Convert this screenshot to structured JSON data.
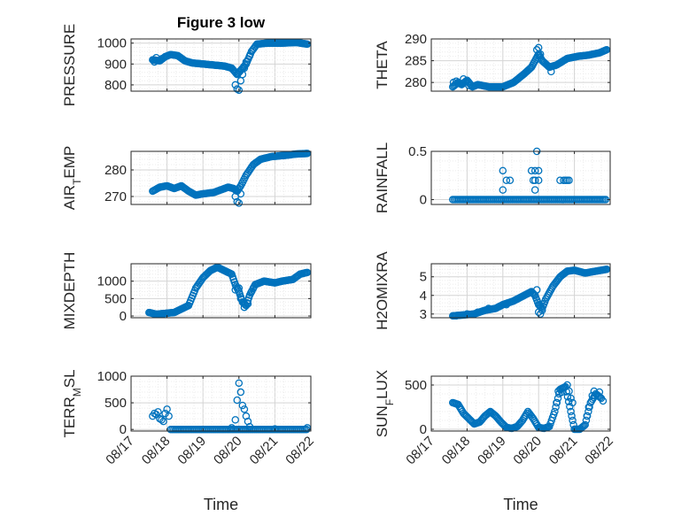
{
  "figure": {
    "title": "Figure 3 low",
    "marker_color": "#0072bd"
  },
  "chart_data": [
    {
      "id": "pressure",
      "type": "scatter",
      "title": "Figure 3 low",
      "xlabel": "",
      "ylabel": "PRESSURE",
      "xlim": [
        0,
        5
      ],
      "ylim": [
        770,
        1020
      ],
      "yticks": [
        800,
        900,
        1000
      ],
      "ytick_labels": [
        "800",
        "900",
        "1000"
      ],
      "xticks": [
        0,
        1,
        2,
        3,
        4,
        5
      ],
      "xtick_labels": [
        "08/17",
        "08/18",
        "08/19",
        "08/20",
        "08/21",
        "08/22"
      ],
      "show_xtick_labels": false,
      "grid": true,
      "curve": [
        [
          0.6,
          920
        ],
        [
          0.8,
          915
        ],
        [
          0.95,
          935
        ],
        [
          1.1,
          945
        ],
        [
          1.3,
          940
        ],
        [
          1.5,
          915
        ],
        [
          1.7,
          905
        ],
        [
          2,
          900
        ],
        [
          2.3,
          895
        ],
        [
          2.6,
          890
        ],
        [
          2.8,
          880
        ],
        [
          2.95,
          850
        ],
        [
          3.05,
          870
        ],
        [
          3.2,
          900
        ],
        [
          3.35,
          960
        ],
        [
          3.5,
          995
        ],
        [
          3.8,
          1000
        ],
        [
          4.2,
          1000
        ],
        [
          4.6,
          1003
        ],
        [
          4.9,
          995
        ]
      ],
      "extra_points": [
        [
          0.7,
          930
        ],
        [
          0.85,
          925
        ],
        [
          0.65,
          910
        ],
        [
          2.9,
          800
        ],
        [
          2.95,
          780
        ],
        [
          3.0,
          775
        ],
        [
          3.05,
          820
        ],
        [
          3.1,
          850
        ],
        [
          3.15,
          880
        ],
        [
          3.2,
          910
        ],
        [
          3.3,
          940
        ]
      ]
    },
    {
      "id": "theta",
      "type": "scatter",
      "xlabel": "",
      "ylabel": "THETA",
      "xlim": [
        0,
        5
      ],
      "ylim": [
        278,
        290
      ],
      "yticks": [
        280,
        285,
        290
      ],
      "ytick_labels": [
        "280",
        "285",
        "290"
      ],
      "xticks": [
        0,
        1,
        2,
        3,
        4,
        5
      ],
      "xtick_labels": [
        "08/17",
        "08/18",
        "08/19",
        "08/20",
        "08/21",
        "08/22"
      ],
      "show_xtick_labels": false,
      "grid": true,
      "curve": [
        [
          0.6,
          279
        ],
        [
          0.75,
          280
        ],
        [
          0.85,
          279.5
        ],
        [
          1.0,
          280.5
        ],
        [
          1.15,
          279
        ],
        [
          1.3,
          279.5
        ],
        [
          1.6,
          279
        ],
        [
          2.0,
          279
        ],
        [
          2.3,
          280
        ],
        [
          2.6,
          282
        ],
        [
          2.8,
          283.5
        ],
        [
          2.9,
          285
        ],
        [
          3.0,
          286.5
        ],
        [
          3.1,
          285
        ],
        [
          3.3,
          283.5
        ],
        [
          3.5,
          284
        ],
        [
          3.8,
          285.5
        ],
        [
          4.1,
          286
        ],
        [
          4.4,
          286.3
        ],
        [
          4.7,
          286.8
        ],
        [
          4.9,
          287.5
        ]
      ],
      "extra_points": [
        [
          0.62,
          280
        ],
        [
          0.7,
          280.3
        ],
        [
          0.9,
          280.8
        ],
        [
          1.05,
          279.3
        ],
        [
          2.95,
          287.5
        ],
        [
          3.0,
          288
        ],
        [
          3.05,
          286.5
        ],
        [
          3.35,
          282.5
        ]
      ]
    },
    {
      "id": "airtemp",
      "type": "scatter",
      "xlabel": "",
      "ylabel": "AIR_TEMP",
      "ylabel_main": "AIR",
      "ylabel_sub": "T",
      "ylabel_rest": "EMP",
      "xlim": [
        0,
        5
      ],
      "ylim": [
        267,
        287
      ],
      "yticks": [
        270,
        280
      ],
      "ytick_labels": [
        "270",
        "280"
      ],
      "xticks": [
        0,
        1,
        2,
        3,
        4,
        5
      ],
      "xtick_labels": [
        "08/17",
        "08/18",
        "08/19",
        "08/20",
        "08/21",
        "08/22"
      ],
      "show_xtick_labels": false,
      "grid": true,
      "curve": [
        [
          0.6,
          272
        ],
        [
          0.8,
          273.5
        ],
        [
          1.0,
          274
        ],
        [
          1.2,
          273
        ],
        [
          1.4,
          274
        ],
        [
          1.6,
          272
        ],
        [
          1.8,
          270.5
        ],
        [
          2.0,
          271
        ],
        [
          2.3,
          271.5
        ],
        [
          2.5,
          272.5
        ],
        [
          2.7,
          273.5
        ],
        [
          2.85,
          273
        ],
        [
          2.95,
          272
        ],
        [
          3.05,
          274
        ],
        [
          3.2,
          278
        ],
        [
          3.4,
          282
        ],
        [
          3.6,
          284
        ],
        [
          3.9,
          285
        ],
        [
          4.3,
          285.5
        ],
        [
          4.6,
          286
        ],
        [
          4.9,
          286.2
        ]
      ],
      "extra_points": [
        [
          2.95,
          268
        ],
        [
          3.0,
          267.5
        ],
        [
          2.9,
          270
        ],
        [
          3.05,
          271
        ]
      ]
    },
    {
      "id": "rainfall",
      "type": "scatter",
      "xlabel": "",
      "ylabel": "RAINFALL",
      "xlim": [
        0,
        5
      ],
      "ylim": [
        -0.05,
        0.5
      ],
      "yticks": [
        0,
        0.5
      ],
      "ytick_labels": [
        "0",
        "0.5"
      ],
      "xticks": [
        0,
        1,
        2,
        3,
        4,
        5
      ],
      "xtick_labels": [
        "08/17",
        "08/18",
        "08/19",
        "08/20",
        "08/21",
        "08/22"
      ],
      "show_xtick_labels": false,
      "grid": true,
      "baseline": {
        "x_from": 0.6,
        "x_to": 4.9,
        "y": 0,
        "step": 0.045
      },
      "extra_points": [
        [
          2.0,
          0.3
        ],
        [
          2.0,
          0.1
        ],
        [
          2.1,
          0.2
        ],
        [
          2.2,
          0.2
        ],
        [
          2.8,
          0.3
        ],
        [
          2.85,
          0.2
        ],
        [
          2.9,
          0.3
        ],
        [
          2.9,
          0.1
        ],
        [
          2.95,
          0.5
        ],
        [
          3.0,
          0.3
        ],
        [
          3.0,
          0.2
        ],
        [
          2.9,
          0.2
        ],
        [
          3.6,
          0.2
        ],
        [
          3.7,
          0.2
        ],
        [
          3.75,
          0.2
        ],
        [
          3.8,
          0.2
        ],
        [
          3.85,
          0.2
        ]
      ]
    },
    {
      "id": "mixdepth",
      "type": "scatter",
      "xlabel": "",
      "ylabel": "MIXDEPTH",
      "xlim": [
        0,
        5
      ],
      "ylim": [
        -50,
        1500
      ],
      "yticks": [
        0,
        500,
        1000
      ],
      "ytick_labels": [
        "0",
        "500",
        "1000"
      ],
      "xticks": [
        0,
        1,
        2,
        3,
        4,
        5
      ],
      "xtick_labels": [
        "08/17",
        "08/18",
        "08/19",
        "08/20",
        "08/21",
        "08/22"
      ],
      "show_xtick_labels": false,
      "grid": true,
      "curve": [
        [
          0.5,
          100
        ],
        [
          0.7,
          50
        ],
        [
          1.0,
          80
        ],
        [
          1.2,
          100
        ],
        [
          1.4,
          200
        ],
        [
          1.6,
          300
        ],
        [
          1.8,
          800
        ],
        [
          2.0,
          1100
        ],
        [
          2.2,
          1300
        ],
        [
          2.4,
          1400
        ],
        [
          2.6,
          1300
        ],
        [
          2.8,
          1200
        ],
        [
          2.9,
          900
        ],
        [
          3.0,
          700
        ],
        [
          3.1,
          400
        ],
        [
          3.2,
          300
        ],
        [
          3.3,
          600
        ],
        [
          3.45,
          900
        ],
        [
          3.7,
          1000
        ],
        [
          4.0,
          950
        ],
        [
          4.2,
          1000
        ],
        [
          4.5,
          1050
        ],
        [
          4.7,
          1200
        ],
        [
          4.9,
          1250
        ]
      ],
      "extra_points": [
        [
          2.9,
          750
        ],
        [
          3.0,
          800
        ],
        [
          3.05,
          500
        ],
        [
          3.15,
          250
        ],
        [
          3.25,
          350
        ],
        [
          3.35,
          700
        ],
        [
          3.4,
          800
        ]
      ]
    },
    {
      "id": "h2omixra",
      "type": "scatter",
      "xlabel": "",
      "ylabel": "H2OMIXRA",
      "xlim": [
        0,
        5
      ],
      "ylim": [
        2.8,
        5.7
      ],
      "yticks": [
        3,
        4,
        5
      ],
      "ytick_labels": [
        "3",
        "4",
        "5"
      ],
      "xticks": [
        0,
        1,
        2,
        3,
        4,
        5
      ],
      "xtick_labels": [
        "08/17",
        "08/18",
        "08/19",
        "08/20",
        "08/21",
        "08/22"
      ],
      "show_xtick_labels": false,
      "grid": true,
      "curve": [
        [
          0.6,
          2.9
        ],
        [
          0.9,
          2.95
        ],
        [
          1.2,
          3.0
        ],
        [
          1.5,
          3.2
        ],
        [
          1.8,
          3.3
        ],
        [
          2.0,
          3.5
        ],
        [
          2.3,
          3.7
        ],
        [
          2.6,
          4.0
        ],
        [
          2.8,
          4.2
        ],
        [
          2.9,
          4.0
        ],
        [
          3.0,
          3.5
        ],
        [
          3.1,
          3.3
        ],
        [
          3.2,
          3.8
        ],
        [
          3.4,
          4.5
        ],
        [
          3.6,
          5.0
        ],
        [
          3.8,
          5.3
        ],
        [
          4.0,
          5.35
        ],
        [
          4.3,
          5.2
        ],
        [
          4.6,
          5.3
        ],
        [
          4.9,
          5.4
        ]
      ],
      "extra_points": [
        [
          0.7,
          2.9
        ],
        [
          1.0,
          3.0
        ],
        [
          1.3,
          3.1
        ],
        [
          1.6,
          3.3
        ],
        [
          1.9,
          3.4
        ],
        [
          2.1,
          3.5
        ],
        [
          2.4,
          3.8
        ],
        [
          2.7,
          4.1
        ],
        [
          2.95,
          4.3
        ],
        [
          3.0,
          3.1
        ],
        [
          3.05,
          3.0
        ],
        [
          3.1,
          3.2
        ]
      ]
    },
    {
      "id": "terrmsl",
      "type": "scatter",
      "xlabel": "Time",
      "ylabel": "TERR_MSL",
      "ylabel_main": "TERR",
      "ylabel_sub": "M",
      "ylabel_rest": "SL",
      "xlim": [
        0,
        5
      ],
      "ylim": [
        -30,
        1000
      ],
      "yticks": [
        0,
        500,
        1000
      ],
      "ytick_labels": [
        "0",
        "500",
        "1000"
      ],
      "xticks": [
        0,
        1,
        2,
        3,
        4,
        5
      ],
      "xtick_labels": [
        "08/17",
        "08/18",
        "08/19",
        "08/20",
        "08/21",
        "08/22"
      ],
      "show_xtick_labels": true,
      "grid": true,
      "baseline": {
        "x_from": 1.1,
        "x_to": 4.9,
        "y": 0,
        "step": 0.045
      },
      "extra_points": [
        [
          0.6,
          250
        ],
        [
          0.65,
          300
        ],
        [
          0.7,
          280
        ],
        [
          0.75,
          330
        ],
        [
          0.8,
          200
        ],
        [
          0.85,
          180
        ],
        [
          0.9,
          150
        ],
        [
          0.95,
          300
        ],
        [
          1.0,
          380
        ],
        [
          1.05,
          250
        ],
        [
          2.8,
          30
        ],
        [
          2.9,
          180
        ],
        [
          2.95,
          550
        ],
        [
          3.0,
          870
        ],
        [
          3.05,
          700
        ],
        [
          3.1,
          450
        ],
        [
          3.15,
          380
        ],
        [
          3.2,
          250
        ],
        [
          3.25,
          150
        ],
        [
          3.3,
          50
        ],
        [
          4.0,
          10
        ],
        [
          4.9,
          30
        ]
      ]
    },
    {
      "id": "sunflux",
      "type": "scatter",
      "xlabel": "Time",
      "ylabel": "SUN_FLUX",
      "ylabel_main": "SUN",
      "ylabel_sub": "F",
      "ylabel_rest": "LUX",
      "xlim": [
        0,
        5
      ],
      "ylim": [
        -20,
        600
      ],
      "yticks": [
        0,
        500
      ],
      "ytick_labels": [
        "0",
        "500"
      ],
      "xticks": [
        0,
        1,
        2,
        3,
        4,
        5
      ],
      "xtick_labels": [
        "08/17",
        "08/18",
        "08/19",
        "08/20",
        "08/21",
        "08/22"
      ],
      "show_xtick_labels": true,
      "grid": true,
      "curve": [
        [
          0.6,
          300
        ],
        [
          0.75,
          280
        ],
        [
          0.9,
          180
        ],
        [
          1.05,
          120
        ],
        [
          1.2,
          60
        ],
        [
          1.35,
          80
        ],
        [
          1.5,
          150
        ],
        [
          1.65,
          200
        ],
        [
          1.8,
          150
        ],
        [
          1.95,
          80
        ],
        [
          2.1,
          20
        ],
        [
          2.25,
          10
        ],
        [
          2.4,
          30
        ],
        [
          2.55,
          100
        ],
        [
          2.7,
          200
        ],
        [
          2.85,
          120
        ],
        [
          3.0,
          20
        ],
        [
          3.15,
          10
        ],
        [
          3.3,
          30
        ],
        [
          3.45,
          200
        ],
        [
          3.6,
          450
        ],
        [
          3.75,
          480
        ],
        [
          3.9,
          200
        ],
        [
          4.0,
          0
        ],
        [
          4.15,
          0
        ],
        [
          4.3,
          50
        ],
        [
          4.45,
          300
        ],
        [
          4.6,
          400
        ],
        [
          4.75,
          350
        ]
      ],
      "extra_points": [
        [
          3.5,
          300
        ],
        [
          3.55,
          430
        ],
        [
          3.65,
          420
        ],
        [
          3.7,
          470
        ],
        [
          3.8,
          500
        ],
        [
          3.85,
          430
        ],
        [
          3.9,
          350
        ],
        [
          3.95,
          300
        ],
        [
          4.35,
          150
        ],
        [
          4.4,
          250
        ],
        [
          4.5,
          380
        ],
        [
          4.55,
          430
        ],
        [
          4.7,
          420
        ],
        [
          4.8,
          320
        ]
      ]
    }
  ]
}
